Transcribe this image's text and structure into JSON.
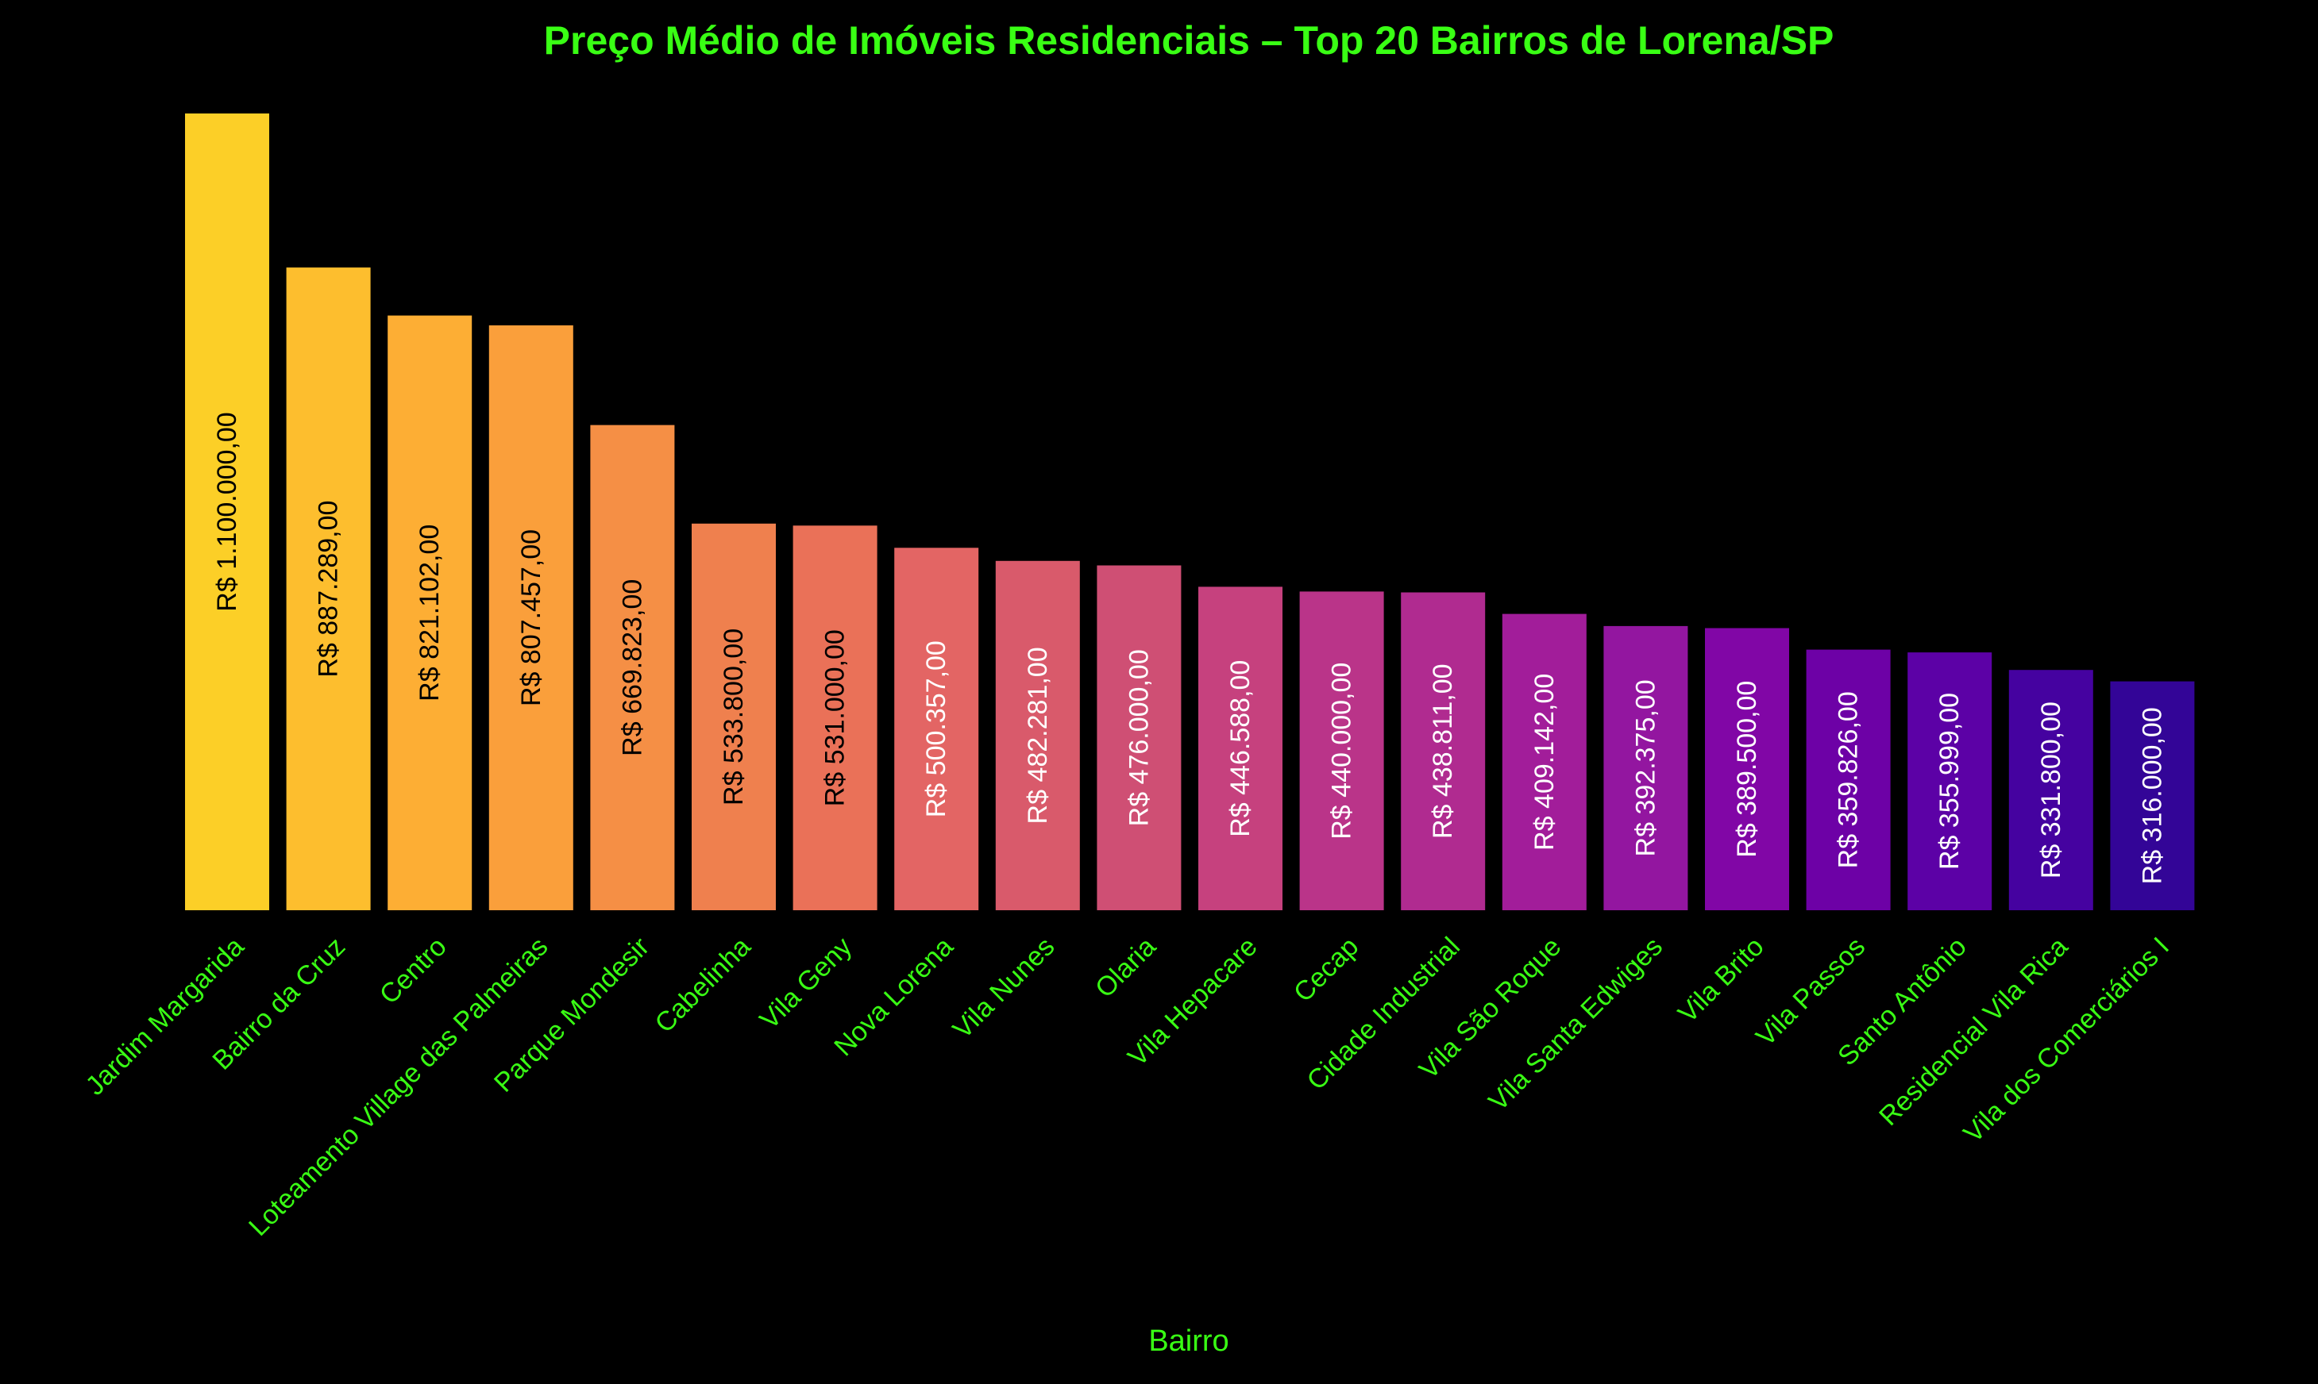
{
  "colors": {
    "background": "#000000",
    "title": "#39ff14",
    "axis_text": "#39ff14",
    "label_dark": "#000000",
    "label_light": "#ffffff"
  },
  "chart_data": {
    "type": "bar",
    "title": "Preço Médio de Imóveis Residenciais – Top 20 Bairros de Lorena/SP",
    "xlabel": "Bairro",
    "ylabel": "",
    "ylim": [
      0,
      1100000
    ],
    "grid": false,
    "legend": "none",
    "categories": [
      "Jardim Margarida",
      "Bairro da Cruz",
      "Centro",
      "Loteamento Village das Palmeiras",
      "Parque Mondesir",
      "Cabelinha",
      "Vila Geny",
      "Nova Lorena",
      "Vila Nunes",
      "Olaria",
      "Vila Hepacare",
      "Cecap",
      "Cidade Industrial",
      "Vila São Roque",
      "Vila Santa Edwiges",
      "Vila Brito",
      "Vila Passos",
      "Santo Antônio",
      "Residencial Vila Rica",
      "Vila dos Comerciários I"
    ],
    "values": [
      1100000,
      887289,
      821102,
      807457,
      669823,
      533800,
      531000,
      500357,
      482281,
      476000,
      446588,
      440000,
      438811,
      409142,
      392375,
      389500,
      359826,
      355999,
      331800,
      316000
    ],
    "value_labels": [
      "R$ 1.100.000,00",
      "R$ 887.289,00",
      "R$ 821.102,00",
      "R$ 807.457,00",
      "R$ 669.823,00",
      "R$ 533.800,00",
      "R$ 531.000,00",
      "R$ 500.357,00",
      "R$ 482.281,00",
      "R$ 476.000,00",
      "R$ 446.588,00",
      "R$ 440.000,00",
      "R$ 438.811,00",
      "R$ 409.142,00",
      "R$ 392.375,00",
      "R$ 389.500,00",
      "R$ 359.826,00",
      "R$ 355.999,00",
      "R$ 331.800,00",
      "R$ 316.000,00"
    ],
    "bar_colors": [
      "#fccf27",
      "#fdbe2e",
      "#fdae34",
      "#fa9f3b",
      "#f58f45",
      "#ef804e",
      "#ea7158",
      "#e36564",
      "#d95a6b",
      "#cf4f74",
      "#c6417e",
      "#ba3489",
      "#b02b90",
      "#a21d9a",
      "#9316a0",
      "#8106a6",
      "#6d01a6",
      "#5c01a6",
      "#4502a0",
      "#330597"
    ],
    "label_colors": [
      "#000000",
      "#000000",
      "#000000",
      "#000000",
      "#000000",
      "#000000",
      "#000000",
      "#ffffff",
      "#ffffff",
      "#ffffff",
      "#ffffff",
      "#ffffff",
      "#ffffff",
      "#ffffff",
      "#ffffff",
      "#ffffff",
      "#ffffff",
      "#ffffff",
      "#ffffff",
      "#ffffff"
    ]
  }
}
